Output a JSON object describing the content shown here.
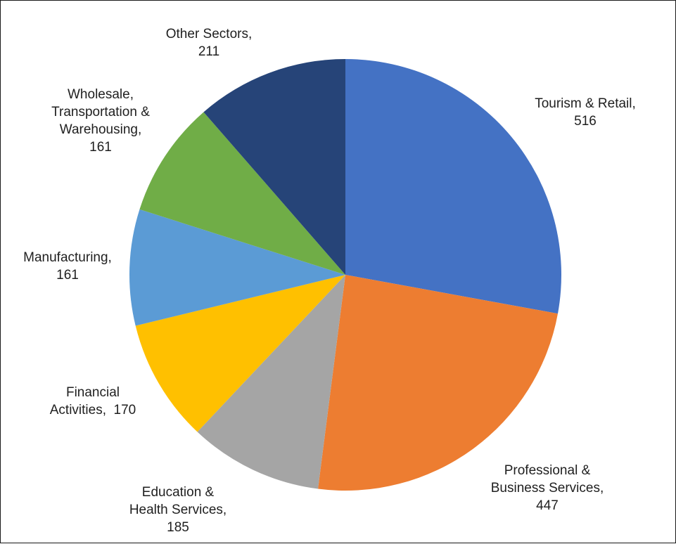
{
  "chart_data": {
    "type": "pie",
    "title": "",
    "start_angle_deg": 0,
    "direction": "clockwise",
    "slices": [
      {
        "label": "Tourism & Retail",
        "value": 516,
        "color": "#4472C4",
        "label_lines": [
          "Tourism & Retail,",
          "516"
        ]
      },
      {
        "label": "Professional & Business Services",
        "value": 447,
        "color": "#ED7D31",
        "label_lines": [
          "Professional &",
          "Business Services,",
          "447"
        ]
      },
      {
        "label": "Education & Health Services",
        "value": 185,
        "color": "#A5A5A5",
        "label_lines": [
          "Education &",
          "Health Services,",
          "185"
        ]
      },
      {
        "label": "Financial Activities",
        "value": 170,
        "color": "#FFC000",
        "label_lines": [
          "Financial",
          "Activities,  170"
        ]
      },
      {
        "label": "Manufacturing",
        "value": 161,
        "color": "#5B9BD5",
        "label_lines": [
          "Manufacturing,",
          "161"
        ]
      },
      {
        "label": "Wholesale, Transportation & Warehousing",
        "value": 161,
        "color": "#70AD47",
        "label_lines": [
          "Wholesale,",
          "Transportation &",
          "Warehousing,",
          "161"
        ]
      },
      {
        "label": "Other Sectors",
        "value": 211,
        "color": "#264478",
        "label_lines": [
          "Other Sectors,",
          "211"
        ]
      }
    ]
  }
}
